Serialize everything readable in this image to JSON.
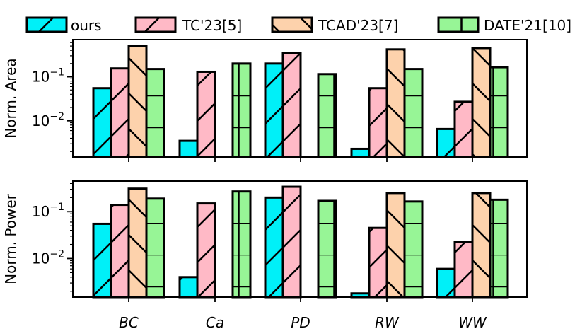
{
  "chart_data": {
    "type": "bar",
    "scale": "log",
    "categories": [
      "BC",
      "Ca",
      "PD",
      "RW",
      "WW"
    ],
    "legend": [
      "ours",
      "TC'23[5]",
      "TCAD'23[7]",
      "DATE'21[10]"
    ],
    "legend_position": "top",
    "series_colors": [
      "#00f0f8",
      "#ffb9c6",
      "#fdd2ac",
      "#97f596"
    ],
    "series_hatches": [
      "diag-up",
      "diag-up",
      "diag-down",
      "h-grid"
    ],
    "panels": [
      {
        "ylabel": "Norm. Area",
        "ylim": [
          0.0015,
          0.7
        ],
        "ytick_labels": [
          {
            "base": "10",
            "exp": "−1",
            "value": 0.1
          },
          {
            "base": "10",
            "exp": "−2",
            "value": 0.01
          }
        ],
        "series": [
          {
            "name": "ours",
            "values": [
              0.055,
              0.0035,
              0.2,
              0.0023,
              0.0065
            ]
          },
          {
            "name": "TC'23[5]",
            "values": [
              0.155,
              0.13,
              0.35,
              0.055,
              0.027
            ]
          },
          {
            "name": "TCAD'23[7]",
            "values": [
              0.5,
              null,
              null,
              0.42,
              0.45
            ]
          },
          {
            "name": "DATE'21[10]",
            "values": [
              0.15,
              0.2,
              0.115,
              0.15,
              0.165
            ]
          }
        ]
      },
      {
        "ylabel": "Norm. Power",
        "ylim": [
          0.0015,
          0.45
        ],
        "ytick_labels": [
          {
            "base": "10",
            "exp": "−1",
            "value": 0.1
          },
          {
            "base": "10",
            "exp": "−2",
            "value": 0.01
          }
        ],
        "series": [
          {
            "name": "ours",
            "values": [
              0.055,
              0.004,
              0.2,
              0.0018,
              0.006
            ]
          },
          {
            "name": "TC'23[5]",
            "values": [
              0.14,
              0.15,
              0.34,
              0.045,
              0.023
            ]
          },
          {
            "name": "TCAD'23[7]",
            "values": [
              0.31,
              null,
              null,
              0.25,
              0.25
            ]
          },
          {
            "name": "DATE'21[10]",
            "values": [
              0.19,
              0.27,
              0.17,
              0.165,
              0.18
            ]
          }
        ]
      }
    ]
  }
}
